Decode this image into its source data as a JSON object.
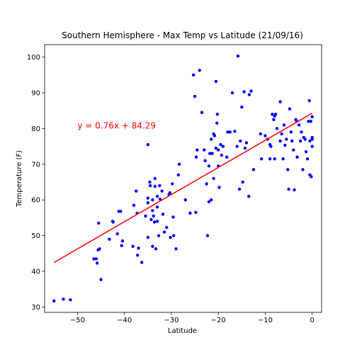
{
  "chart_data": {
    "type": "scatter",
    "title": "Southern Hemisphere - Max Temp vs Latitude (21/09/16)",
    "xlabel": "Latitude",
    "ylabel": "Temperature (F)",
    "xlim": [
      -57,
      2
    ],
    "ylim": [
      28.5,
      103.5
    ],
    "xticks": [
      -50,
      -40,
      -30,
      -20,
      -10,
      0
    ],
    "yticks": [
      30,
      40,
      50,
      60,
      70,
      80,
      90,
      100
    ],
    "grid": false,
    "colors": {
      "points": "#0000ff",
      "regression": "#ff0000"
    },
    "regression": {
      "equation_label": "y = 0.76x + 84.29",
      "slope": 0.76,
      "intercept": 84.29,
      "x_range": [
        -55,
        0
      ],
      "label_position": [
        -50,
        80
      ]
    },
    "series": [
      {
        "points": [
          [
            -55,
            31.7
          ],
          [
            -53,
            32.2
          ],
          [
            -51.5,
            32.0
          ],
          [
            -46,
            43.5
          ],
          [
            -45.8,
            42.3
          ],
          [
            -46.5,
            43.5
          ],
          [
            -45.5,
            53.5
          ],
          [
            -45.6,
            46
          ],
          [
            -45.3,
            46.3
          ],
          [
            -45,
            37.7
          ],
          [
            -43.2,
            49
          ],
          [
            -42.5,
            54
          ],
          [
            -42.4,
            53.8
          ],
          [
            -41.5,
            50.5
          ],
          [
            -41.2,
            56.8
          ],
          [
            -40.8,
            56.8
          ],
          [
            -40.6,
            47.2
          ],
          [
            -40.4,
            48.5
          ],
          [
            -38.2,
            47
          ],
          [
            -38,
            58.5
          ],
          [
            -37.5,
            62.5
          ],
          [
            -37.3,
            56.3
          ],
          [
            -37.2,
            44.5
          ],
          [
            -37,
            46.5
          ],
          [
            -36.3,
            42.5
          ],
          [
            -35.5,
            55.5
          ],
          [
            -35,
            59.2
          ],
          [
            -35,
            49.5
          ],
          [
            -35,
            60.5
          ],
          [
            -35,
            75.5
          ],
          [
            -34.6,
            65
          ],
          [
            -34.5,
            64
          ],
          [
            -34.3,
            54.5
          ],
          [
            -34,
            57
          ],
          [
            -34,
            47
          ],
          [
            -34,
            60
          ],
          [
            -33.8,
            55.5
          ],
          [
            -33.6,
            53.8
          ],
          [
            -33.5,
            63.8
          ],
          [
            -33.5,
            66
          ],
          [
            -33.3,
            46.3
          ],
          [
            -33,
            58
          ],
          [
            -33,
            54
          ],
          [
            -33,
            61
          ],
          [
            -32.7,
            50
          ],
          [
            -32.5,
            64
          ],
          [
            -32.4,
            60.2
          ],
          [
            -32,
            62.5
          ],
          [
            -31.8,
            56
          ],
          [
            -31.5,
            51
          ],
          [
            -31,
            52.3
          ],
          [
            -30.5,
            61.5
          ],
          [
            -30.3,
            62
          ],
          [
            -30.2,
            49.5
          ],
          [
            -29.8,
            64.5
          ],
          [
            -29.6,
            55.2
          ],
          [
            -29.5,
            50
          ],
          [
            -29,
            46.3
          ],
          [
            -28.5,
            67
          ],
          [
            -28.3,
            70
          ],
          [
            -27,
            60
          ],
          [
            -26,
            56.3
          ],
          [
            -25.3,
            95
          ],
          [
            -25,
            89
          ],
          [
            -24.8,
            56.5
          ],
          [
            -24.7,
            72
          ],
          [
            -24.5,
            74
          ],
          [
            -24,
            96.3
          ],
          [
            -23.5,
            84.5
          ],
          [
            -23,
            74
          ],
          [
            -22.8,
            71
          ],
          [
            -22.5,
            64.5
          ],
          [
            -22.3,
            50
          ],
          [
            -22,
            59.5
          ],
          [
            -22,
            69.5
          ],
          [
            -21.8,
            73
          ],
          [
            -21.5,
            60
          ],
          [
            -21.5,
            77
          ],
          [
            -21.3,
            73
          ],
          [
            -21,
            78.5
          ],
          [
            -21,
            66
          ],
          [
            -20.8,
            78
          ],
          [
            -20.5,
            93.2
          ],
          [
            -20.5,
            74.5
          ],
          [
            -20.3,
            81.5
          ],
          [
            -20.2,
            84
          ],
          [
            -20,
            69.5
          ],
          [
            -20,
            74
          ],
          [
            -19.8,
            63.5
          ],
          [
            -19.5,
            75.5
          ],
          [
            -19.3,
            72.5
          ],
          [
            -19,
            75
          ],
          [
            -18.2,
            72
          ],
          [
            -18,
            79
          ],
          [
            -17.5,
            79
          ],
          [
            -17,
            90
          ],
          [
            -16.5,
            79.2
          ],
          [
            -16,
            75
          ],
          [
            -15.8,
            100.3
          ],
          [
            -15.5,
            63
          ],
          [
            -15.3,
            76.5
          ],
          [
            -15,
            86
          ],
          [
            -14.8,
            65
          ],
          [
            -14.5,
            90.3
          ],
          [
            -14.3,
            74.5
          ],
          [
            -14,
            76
          ],
          [
            -13.5,
            61
          ],
          [
            -13.4,
            89.5
          ],
          [
            -13,
            90.5
          ],
          [
            -12.5,
            68.5
          ],
          [
            -11,
            78.5
          ],
          [
            -10.8,
            71.5
          ],
          [
            -10,
            78
          ],
          [
            -9.5,
            77
          ],
          [
            -9,
            75.5
          ],
          [
            -9,
            71.5
          ],
          [
            -8.8,
            75
          ],
          [
            -8.5,
            84
          ],
          [
            -8.2,
            82.5
          ],
          [
            -8,
            83.5
          ],
          [
            -8,
            71.5
          ],
          [
            -7.8,
            84
          ],
          [
            -7.5,
            80
          ],
          [
            -6.8,
            76.5
          ],
          [
            -6.8,
            87.5
          ],
          [
            -6.5,
            78.5
          ],
          [
            -6.2,
            71.5
          ],
          [
            -6,
            81
          ],
          [
            -5.8,
            75.3
          ],
          [
            -5.5,
            77
          ],
          [
            -5.2,
            68.5
          ],
          [
            -5,
            63
          ],
          [
            -4.8,
            85.5
          ],
          [
            -4.5,
            79
          ],
          [
            -4.3,
            76.5
          ],
          [
            -4,
            74
          ],
          [
            -3.8,
            62.8
          ],
          [
            -3.5,
            82.5
          ],
          [
            -3.3,
            82
          ],
          [
            -3.2,
            72
          ],
          [
            -2.8,
            81
          ],
          [
            -2.5,
            76.5
          ],
          [
            -2.3,
            79
          ],
          [
            -2,
            68.5
          ],
          [
            -1.8,
            77.5
          ],
          [
            -1.5,
            77
          ],
          [
            -1.3,
            73.5
          ],
          [
            -1,
            71.5
          ],
          [
            -0.8,
            82
          ],
          [
            -0.6,
            87.8
          ],
          [
            -0.5,
            76.5
          ],
          [
            -0.5,
            67
          ],
          [
            -0.3,
            82
          ],
          [
            -0.2,
            66.5
          ],
          [
            0,
            83.3
          ],
          [
            0,
            77
          ],
          [
            0,
            77.5
          ],
          [
            0,
            75
          ]
        ]
      }
    ]
  }
}
